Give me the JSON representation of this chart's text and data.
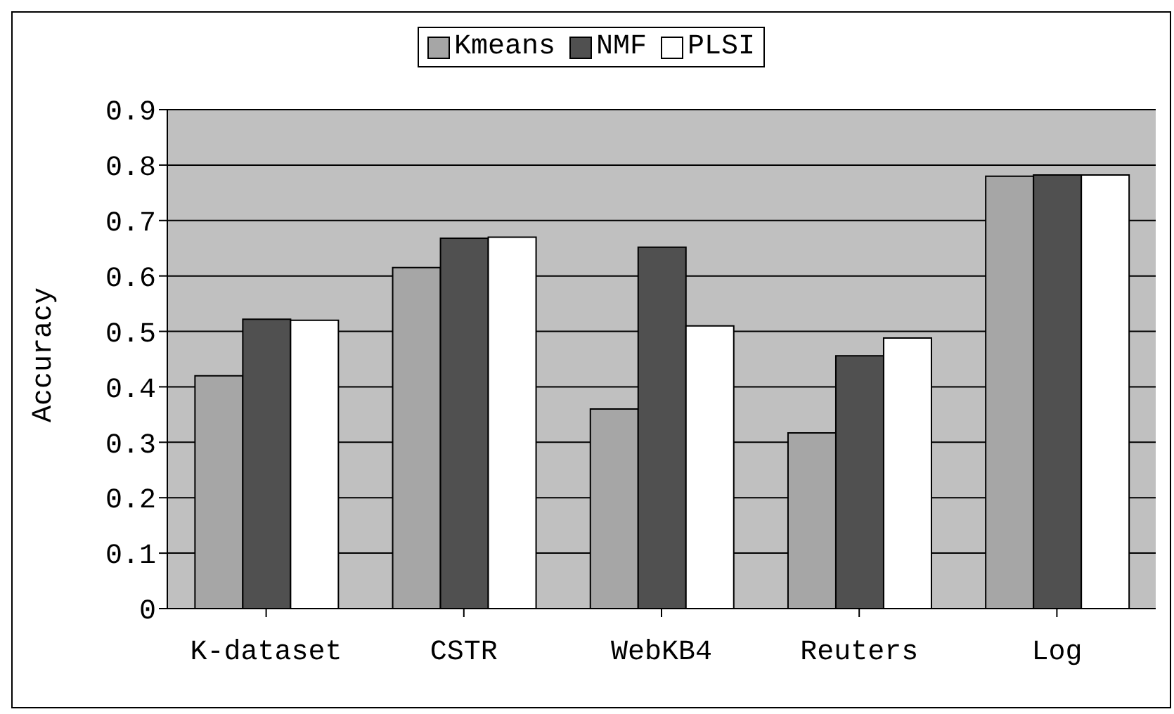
{
  "chart_data": {
    "type": "bar",
    "ylabel": "Accuracy",
    "categories": [
      "K-dataset",
      "CSTR",
      "WebKB4",
      "Reuters",
      "Log"
    ],
    "series": [
      {
        "name": "Kmeans",
        "color": "#a6a6a6",
        "values": [
          0.42,
          0.615,
          0.36,
          0.317,
          0.78
        ]
      },
      {
        "name": "NMF",
        "color": "#505050",
        "values": [
          0.522,
          0.668,
          0.652,
          0.456,
          0.782
        ]
      },
      {
        "name": "PLSI",
        "color": "#ffffff",
        "values": [
          0.52,
          0.67,
          0.51,
          0.488,
          0.782
        ]
      }
    ],
    "ylim": [
      0,
      0.9
    ],
    "yticks": [
      0,
      0.1,
      0.2,
      0.3,
      0.4,
      0.5,
      0.6,
      0.7,
      0.8,
      0.9
    ],
    "grid": "y",
    "legend": "top"
  }
}
